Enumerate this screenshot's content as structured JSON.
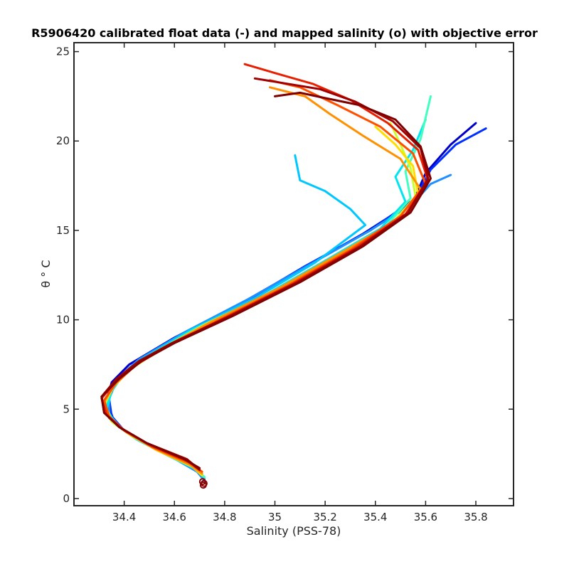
{
  "chart_data": {
    "type": "line",
    "title": "R5906420 calibrated float data (-) and mapped salinity (o) with objective error",
    "xlabel": "Salinity (PSS-78)",
    "ylabel": "θ ° C",
    "xlim": [
      34.2,
      35.95
    ],
    "ylim": [
      -0.4,
      25.5
    ],
    "xticks": [
      34.4,
      34.6,
      34.8,
      35,
      35.2,
      35.4,
      35.6,
      35.8
    ],
    "xtick_labels": [
      "34.4",
      "34.6",
      "34.8",
      "35",
      "35.2",
      "35.4",
      "35.6",
      "35.8"
    ],
    "yticks": [
      0,
      5,
      10,
      15,
      20,
      25
    ],
    "ytick_labels": [
      "0",
      "5",
      "10",
      "15",
      "20",
      "25"
    ],
    "grid": false,
    "colormap": "jet (early profiles blue → late profiles dark red)",
    "series": [
      {
        "color": "#0000c8",
        "x": [
          34.72,
          34.7,
          34.62,
          34.5,
          34.42,
          34.36,
          34.33,
          34.35,
          34.42,
          34.6,
          34.85,
          35.1,
          35.35,
          35.55,
          35.6,
          35.7,
          35.8
        ],
        "y": [
          1.0,
          1.5,
          2.3,
          3.0,
          3.6,
          4.3,
          5.5,
          6.5,
          7.5,
          9.0,
          10.8,
          12.8,
          14.8,
          16.6,
          18.2,
          19.8,
          21.0
        ]
      },
      {
        "color": "#0030ff",
        "x": [
          34.72,
          34.7,
          34.6,
          34.48,
          34.4,
          34.35,
          34.34,
          34.37,
          34.45,
          34.62,
          34.88,
          35.12,
          35.38,
          35.56,
          35.62,
          35.72,
          35.84
        ],
        "y": [
          1.0,
          1.5,
          2.4,
          3.1,
          3.8,
          4.6,
          5.6,
          6.6,
          7.6,
          9.1,
          11.0,
          13.0,
          15.0,
          16.8,
          18.4,
          19.8,
          20.7
        ]
      },
      {
        "color": "#1e90ff",
        "x": [
          34.72,
          34.69,
          34.58,
          34.47,
          34.39,
          34.34,
          34.34,
          34.38,
          34.46,
          34.64,
          34.9,
          35.14,
          35.38,
          35.55,
          35.62,
          35.7
        ],
        "y": [
          1.0,
          1.5,
          2.4,
          3.2,
          3.9,
          4.7,
          5.7,
          6.8,
          7.8,
          9.3,
          11.2,
          13.1,
          15.0,
          16.5,
          17.6,
          18.1
        ]
      },
      {
        "color": "#00c8ff",
        "x": [
          34.72,
          34.69,
          34.57,
          34.46,
          34.38,
          34.33,
          34.34,
          34.39,
          34.48,
          34.66,
          34.92,
          35.16,
          35.36,
          35.3,
          35.2,
          35.1,
          35.08
        ],
        "y": [
          1.1,
          1.6,
          2.5,
          3.3,
          4.0,
          4.9,
          5.8,
          6.9,
          7.9,
          9.4,
          11.2,
          13.2,
          15.3,
          16.2,
          17.2,
          17.8,
          19.2
        ]
      },
      {
        "color": "#00e5ee",
        "x": [
          34.72,
          34.69,
          34.56,
          34.45,
          34.37,
          34.33,
          34.35,
          34.4,
          34.5,
          34.68,
          34.95,
          35.2,
          35.42,
          35.52,
          35.48,
          35.55,
          35.6
        ],
        "y": [
          1.2,
          1.6,
          2.5,
          3.3,
          4.1,
          5.0,
          6.0,
          7.0,
          8.0,
          9.5,
          11.3,
          13.3,
          15.1,
          16.6,
          18.0,
          19.5,
          21.2
        ]
      },
      {
        "color": "#40ffc0",
        "x": [
          34.72,
          34.68,
          34.55,
          34.44,
          34.36,
          34.32,
          34.35,
          34.41,
          34.51,
          34.7,
          34.97,
          35.22,
          35.44,
          35.54,
          35.52,
          35.58,
          35.62
        ],
        "y": [
          1.2,
          1.7,
          2.6,
          3.4,
          4.2,
          5.1,
          6.1,
          7.1,
          8.1,
          9.6,
          11.4,
          13.4,
          15.2,
          16.8,
          18.3,
          20.1,
          22.5
        ]
      },
      {
        "color": "#c8ff30",
        "x": [
          34.71,
          34.67,
          34.54,
          34.43,
          34.35,
          34.32,
          34.35,
          34.42,
          34.53,
          34.72,
          34.99,
          35.24,
          35.46,
          35.56,
          35.54,
          35.5,
          35.46
        ],
        "y": [
          1.3,
          1.8,
          2.7,
          3.5,
          4.3,
          5.2,
          6.2,
          7.2,
          8.2,
          9.7,
          11.5,
          13.5,
          15.3,
          16.9,
          18.5,
          19.8,
          21.0
        ]
      },
      {
        "color": "#ffdd00",
        "x": [
          34.71,
          34.67,
          34.53,
          34.42,
          34.35,
          34.32,
          34.36,
          34.43,
          34.54,
          34.73,
          35.0,
          35.25,
          35.47,
          35.57,
          35.55,
          35.48,
          35.4
        ],
        "y": [
          1.3,
          1.8,
          2.7,
          3.6,
          4.4,
          5.3,
          6.3,
          7.3,
          8.3,
          9.8,
          11.6,
          13.6,
          15.4,
          17.0,
          18.6,
          19.8,
          20.8
        ]
      },
      {
        "color": "#ff9000",
        "x": [
          34.71,
          34.66,
          34.52,
          34.41,
          34.34,
          34.32,
          34.36,
          34.44,
          34.55,
          34.75,
          35.02,
          35.27,
          35.49,
          35.58,
          35.5,
          35.35,
          35.22,
          35.12,
          34.98
        ],
        "y": [
          1.4,
          1.9,
          2.8,
          3.7,
          4.5,
          5.4,
          6.4,
          7.4,
          8.4,
          9.9,
          11.8,
          13.8,
          15.6,
          17.3,
          19.0,
          20.3,
          21.5,
          22.5,
          23.0
        ]
      },
      {
        "color": "#ff5000",
        "x": [
          34.71,
          34.66,
          34.51,
          34.4,
          34.34,
          34.32,
          34.37,
          34.45,
          34.57,
          34.78,
          35.05,
          35.3,
          35.5,
          35.6,
          35.55,
          35.42,
          35.25,
          35.1,
          34.98
        ],
        "y": [
          1.5,
          2.0,
          2.9,
          3.8,
          4.6,
          5.5,
          6.5,
          7.5,
          8.5,
          10.0,
          11.9,
          13.9,
          15.8,
          17.6,
          19.3,
          20.8,
          22.0,
          23.0,
          23.4
        ]
      },
      {
        "color": "#e62000",
        "x": [
          34.7,
          34.65,
          34.5,
          34.39,
          34.33,
          34.31,
          34.37,
          34.46,
          34.58,
          34.8,
          35.07,
          35.32,
          35.52,
          35.61,
          35.57,
          35.45,
          35.3,
          35.15,
          35.0,
          34.88
        ],
        "y": [
          1.6,
          2.1,
          3.0,
          3.9,
          4.7,
          5.6,
          6.6,
          7.6,
          8.6,
          10.1,
          12.0,
          14.0,
          15.9,
          17.8,
          19.5,
          21.0,
          22.3,
          23.2,
          23.8,
          24.3
        ]
      },
      {
        "color": "#a00000",
        "x": [
          34.7,
          34.65,
          34.49,
          34.38,
          34.32,
          34.31,
          34.37,
          34.46,
          34.59,
          34.82,
          35.09,
          35.34,
          35.53,
          35.61,
          35.58,
          35.47,
          35.32,
          35.18,
          35.05,
          34.92
        ],
        "y": [
          1.6,
          2.2,
          3.1,
          4.0,
          4.8,
          5.7,
          6.7,
          7.7,
          8.7,
          10.2,
          12.1,
          14.1,
          16.0,
          17.9,
          19.6,
          21.1,
          22.2,
          22.9,
          23.2,
          23.5
        ]
      },
      {
        "color": "#800000",
        "x": [
          34.7,
          34.64,
          34.49,
          34.38,
          34.32,
          34.31,
          34.38,
          34.47,
          34.6,
          34.83,
          35.1,
          35.35,
          35.54,
          35.62,
          35.58,
          35.48,
          35.34,
          35.2,
          35.1,
          35.0
        ],
        "y": [
          1.7,
          2.2,
          3.1,
          4.0,
          4.8,
          5.7,
          6.7,
          7.7,
          8.7,
          10.2,
          12.1,
          14.1,
          16.0,
          17.9,
          19.7,
          21.2,
          22.0,
          22.4,
          22.7,
          22.5
        ]
      }
    ],
    "mapped_points": {
      "color": "#8b0000",
      "x": [
        34.715,
        34.718,
        34.712
      ],
      "y": [
        0.75,
        0.85,
        0.95
      ]
    }
  }
}
